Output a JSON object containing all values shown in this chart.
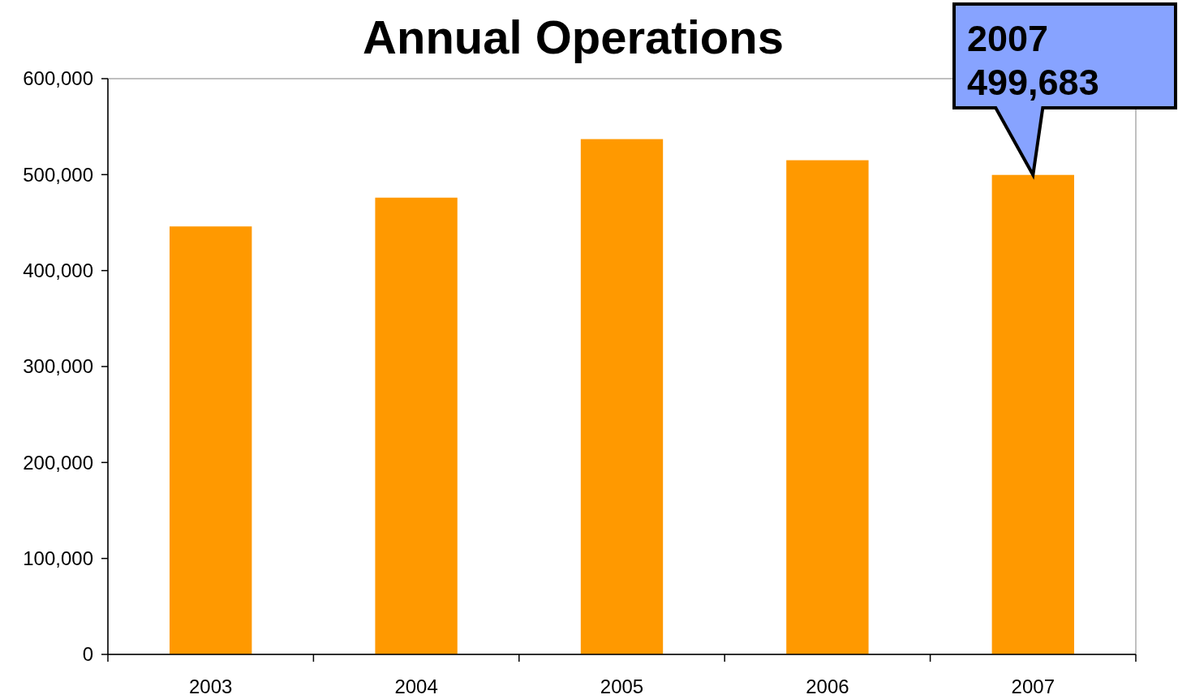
{
  "chart_data": {
    "type": "bar",
    "title": "Annual Operations",
    "categories": [
      "2003",
      "2004",
      "2005",
      "2006",
      "2007"
    ],
    "values": [
      446000,
      476000,
      537000,
      515000,
      499683
    ],
    "color": "#ff9900",
    "ylim": [
      0,
      600000
    ],
    "yticks": [
      {
        "value": 0,
        "label": "0"
      },
      {
        "value": 100000,
        "label": "100,000"
      },
      {
        "value": 200000,
        "label": "200,000"
      },
      {
        "value": 300000,
        "label": "300,000"
      },
      {
        "value": 400000,
        "label": "400,000"
      },
      {
        "value": 500000,
        "label": "500,000"
      },
      {
        "value": 600000,
        "label": "600,000"
      }
    ],
    "grid": false,
    "annotations": [
      {
        "text": "2007\n499,683",
        "x": "2007",
        "y": 499683
      }
    ]
  }
}
